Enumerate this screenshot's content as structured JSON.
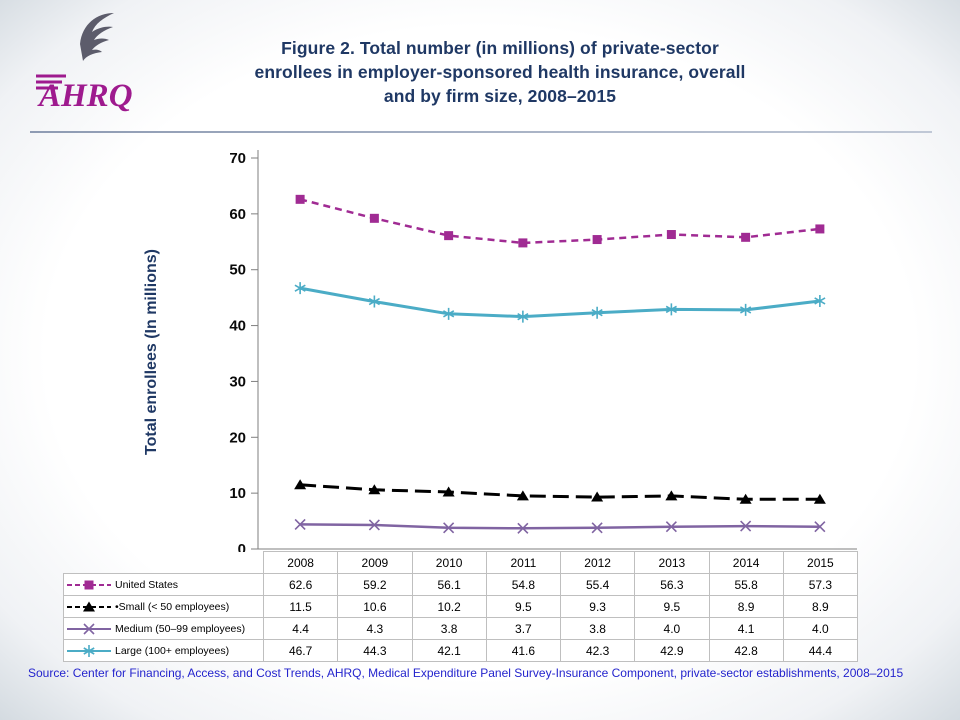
{
  "header": {
    "logo": {
      "text": "AHRQ",
      "brand_color": "#9E1A8E"
    },
    "title_lines": [
      "Figure 2. Total number (in millions) of private-sector",
      "enrollees in employer-sponsored health insurance, overall",
      "and by firm size, 2008–2015"
    ],
    "title_color": "#1F3864"
  },
  "chart_data": {
    "type": "line",
    "x": [
      "2008",
      "2009",
      "2010",
      "2011",
      "2012",
      "2013",
      "2014",
      "2015"
    ],
    "ylabel": "Total enrollees (In millions)",
    "ylim": [
      0,
      70
    ],
    "ytick_step": 10,
    "grid": false,
    "legend_position": "table-left",
    "series": [
      {
        "name": "United States",
        "values": [
          62.6,
          59.2,
          56.1,
          54.8,
          55.4,
          56.3,
          55.8,
          57.3
        ],
        "color": "#A02B93",
        "marker": "square",
        "dash": "7,5",
        "stroke_width": 2.5
      },
      {
        "name": "•Small (< 50 employees)",
        "values": [
          11.5,
          10.6,
          10.2,
          9.5,
          9.3,
          9.5,
          8.9,
          8.9
        ],
        "color": "#000000",
        "marker": "triangle",
        "dash": "16,7",
        "stroke_width": 3
      },
      {
        "name": "Medium (50–99 employees)",
        "values": [
          4.4,
          4.3,
          3.8,
          3.7,
          3.8,
          4.0,
          4.1,
          4.0
        ],
        "color": "#8064A2",
        "marker": "x",
        "dash": "",
        "stroke_width": 2.5
      },
      {
        "name": "Large (100+ employees)",
        "values": [
          46.7,
          44.3,
          42.1,
          41.6,
          42.3,
          42.9,
          42.8,
          44.4
        ],
        "color": "#4BACC6",
        "marker": "asterisk",
        "dash": "",
        "stroke_width": 3
      }
    ]
  },
  "source_note": "Source: Center for Financing, Access, and Cost Trends, AHRQ, Medical Expenditure Panel Survey-Insurance Component, private-sector establishments, 2008–2015"
}
